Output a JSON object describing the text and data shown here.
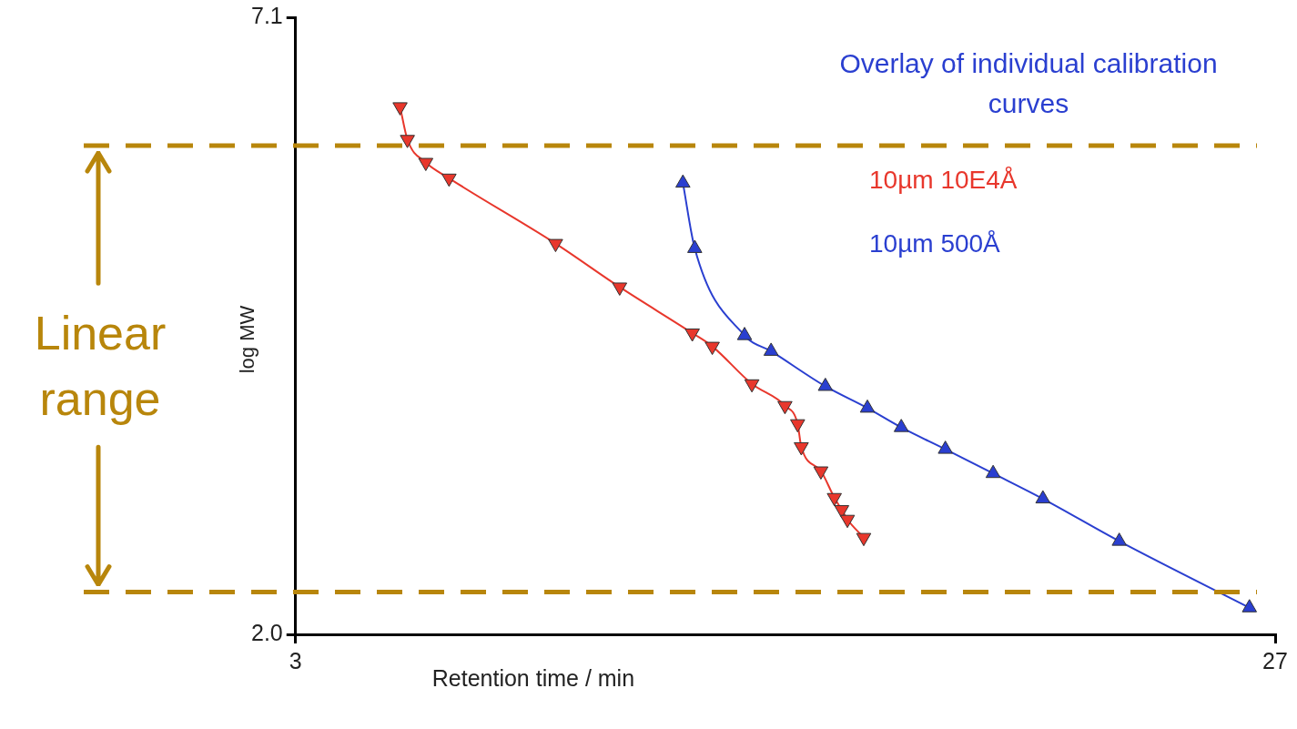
{
  "chart_data": {
    "type": "line",
    "title": "Overlay of individual calibration curves",
    "xlabel": "Retention time / min",
    "ylabel": "log MW",
    "xlim": [
      3,
      27
    ],
    "xticks": [
      3,
      27
    ],
    "ylim": [
      2.0,
      7.1
    ],
    "yticks": [
      {
        "value": 2.0,
        "label": "2.0"
      },
      {
        "value": 7.1,
        "label": "7.1"
      }
    ],
    "grid": false,
    "legend": "top right",
    "line_style": "solid",
    "series": [
      {
        "name": "10µm 10E4Å",
        "color": "#e8372c",
        "marker": "triangle-down",
        "x": [
          5.56,
          5.74,
          6.19,
          6.76,
          9.37,
          10.94,
          12.72,
          13.21,
          14.18,
          14.99,
          15.3,
          15.39,
          15.87,
          16.2,
          16.38,
          16.52,
          16.92
        ],
        "values": [
          6.36,
          6.09,
          5.9,
          5.77,
          5.23,
          4.87,
          4.49,
          4.38,
          4.07,
          3.89,
          3.74,
          3.55,
          3.35,
          3.13,
          3.03,
          2.95,
          2.8
        ]
      },
      {
        "name": "10µm 500Å",
        "color": "#2a3fd0",
        "marker": "triangle",
        "x": [
          12.49,
          12.78,
          14.0,
          14.65,
          15.98,
          17.01,
          17.84,
          18.92,
          20.09,
          21.31,
          23.18,
          26.37
        ],
        "values": [
          5.73,
          5.19,
          4.47,
          4.34,
          4.05,
          3.87,
          3.71,
          3.53,
          3.33,
          3.12,
          2.77,
          2.22
        ]
      }
    ],
    "ref_lines": [
      {
        "axis": "y",
        "value": 6.04,
        "color": "#b8860b",
        "line_style": "dashed"
      },
      {
        "axis": "y",
        "value": 2.35,
        "color": "#b8860b",
        "line_style": "dashed"
      }
    ],
    "annotations": [
      "Linear range"
    ]
  }
}
